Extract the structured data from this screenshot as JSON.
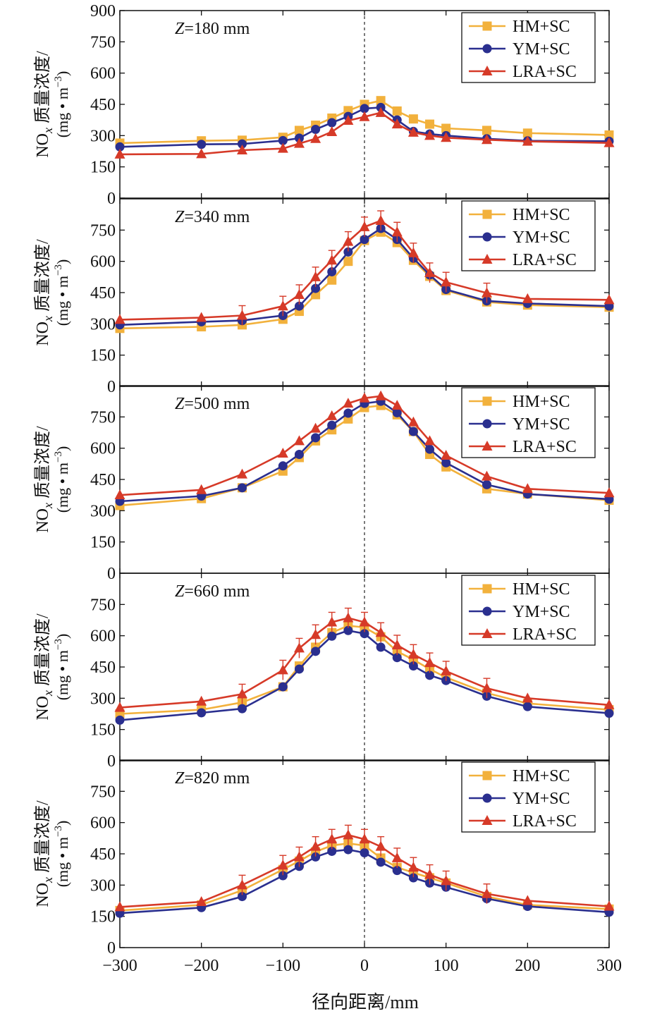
{
  "figure": {
    "xlabel": "径向距离/mm",
    "ylabel_main": "NO",
    "ylabel_sub": "x",
    "ylabel_rest": " 质量浓度/",
    "ylabel_unit_pre": "(mg • m",
    "ylabel_unit_sup": "−3",
    "ylabel_unit_post": ")",
    "z_prefix": "Z",
    "x_ticks": [
      "−300",
      "−200",
      "−100",
      "0",
      "100",
      "200",
      "300"
    ]
  },
  "colors": {
    "HM+SC": "#f2b13c",
    "YM+SC": "#2a2f8f",
    "LRA+SC": "#d63a28",
    "axis": "#111111"
  },
  "chart_data": [
    {
      "type": "line",
      "panel_label": "=180 mm",
      "xlim": [
        -300,
        300
      ],
      "ylim": [
        0,
        900
      ],
      "y_ticks": [
        "0",
        "150",
        "300",
        "450",
        "600",
        "750",
        "900"
      ],
      "legend": [
        "HM+SC",
        "YM+SC",
        "LRA+SC"
      ],
      "legend_position": "top-right",
      "vline_x": 0,
      "x": [
        -300,
        -200,
        -150,
        -100,
        -80,
        -60,
        -40,
        -20,
        0,
        20,
        40,
        60,
        80,
        100,
        150,
        200,
        300
      ],
      "series": [
        {
          "name": "HM+SC",
          "marker": "square",
          "values": [
            264,
            275,
            278,
            292,
            325,
            350,
            384,
            420,
            450,
            468,
            418,
            380,
            355,
            335,
            325,
            312,
            303
          ]
        },
        {
          "name": "YM+SC",
          "marker": "circle",
          "values": [
            246,
            258,
            260,
            276,
            288,
            330,
            362,
            392,
            430,
            435,
            375,
            320,
            308,
            300,
            285,
            275,
            273
          ]
        },
        {
          "name": "LRA+SC",
          "marker": "triangle",
          "values": [
            210,
            212,
            230,
            238,
            262,
            285,
            318,
            372,
            390,
            410,
            355,
            315,
            300,
            290,
            280,
            272,
            265
          ]
        }
      ]
    },
    {
      "type": "line",
      "panel_label": "=340 mm",
      "xlim": [
        -300,
        300
      ],
      "ylim": [
        0,
        900
      ],
      "y_ticks": [
        "0",
        "150",
        "300",
        "450",
        "600",
        "750"
      ],
      "legend": [
        "HM+SC",
        "YM+SC",
        "LRA+SC"
      ],
      "legend_position": "top-right",
      "vline_x": 0,
      "x": [
        -300,
        -200,
        -150,
        -100,
        -80,
        -60,
        -40,
        -20,
        0,
        20,
        40,
        60,
        80,
        100,
        150,
        200,
        300
      ],
      "series": [
        {
          "name": "HM+SC",
          "marker": "square",
          "values": [
            278,
            286,
            295,
            322,
            360,
            440,
            510,
            600,
            700,
            740,
            690,
            605,
            528,
            460,
            405,
            390,
            380
          ]
        },
        {
          "name": "YM+SC",
          "marker": "circle",
          "values": [
            295,
            310,
            316,
            340,
            385,
            470,
            550,
            645,
            705,
            758,
            705,
            615,
            535,
            465,
            410,
            398,
            385
          ]
        },
        {
          "name": "LRA+SC",
          "marker": "triangle",
          "values": [
            320,
            330,
            340,
            385,
            440,
            525,
            605,
            695,
            765,
            795,
            740,
            640,
            545,
            500,
            448,
            420,
            415
          ]
        }
      ],
      "error_bars": "LRA+SC"
    },
    {
      "type": "line",
      "panel_label": "=500 mm",
      "xlim": [
        -300,
        300
      ],
      "ylim": [
        0,
        900
      ],
      "y_ticks": [
        "0",
        "150",
        "300",
        "450",
        "600",
        "750"
      ],
      "legend": [
        "HM+SC",
        "YM+SC",
        "LRA+SC"
      ],
      "legend_position": "top-right",
      "vline_x": 0,
      "x": [
        -300,
        -200,
        -150,
        -100,
        -80,
        -60,
        -40,
        -20,
        0,
        20,
        40,
        60,
        80,
        100,
        150,
        200,
        300
      ],
      "series": [
        {
          "name": "HM+SC",
          "marker": "square",
          "values": [
            325,
            358,
            410,
            490,
            555,
            635,
            688,
            740,
            795,
            805,
            760,
            680,
            570,
            510,
            405,
            380,
            350
          ]
        },
        {
          "name": "YM+SC",
          "marker": "circle",
          "values": [
            345,
            370,
            410,
            515,
            570,
            650,
            710,
            768,
            815,
            825,
            770,
            680,
            595,
            530,
            425,
            380,
            355
          ]
        },
        {
          "name": "LRA+SC",
          "marker": "triangle",
          "values": [
            375,
            400,
            475,
            575,
            635,
            695,
            755,
            815,
            840,
            850,
            805,
            725,
            635,
            565,
            465,
            405,
            385
          ]
        }
      ]
    },
    {
      "type": "line",
      "panel_label": "=660 mm",
      "xlim": [
        -300,
        300
      ],
      "ylim": [
        0,
        900
      ],
      "y_ticks": [
        "0",
        "150",
        "300",
        "450",
        "600",
        "750"
      ],
      "legend": [
        "HM+SC",
        "YM+SC",
        "LRA+SC"
      ],
      "legend_position": "top-right",
      "vline_x": 0,
      "x": [
        -300,
        -200,
        -150,
        -100,
        -80,
        -60,
        -40,
        -20,
        0,
        20,
        40,
        60,
        80,
        100,
        150,
        200,
        300
      ],
      "series": [
        {
          "name": "HM+SC",
          "marker": "square",
          "values": [
            225,
            245,
            280,
            355,
            455,
            545,
            615,
            648,
            640,
            595,
            525,
            485,
            440,
            400,
            325,
            275,
            245
          ]
        },
        {
          "name": "YM+SC",
          "marker": "circle",
          "values": [
            195,
            230,
            250,
            355,
            440,
            525,
            598,
            625,
            610,
            545,
            495,
            455,
            410,
            385,
            310,
            260,
            228
          ]
        },
        {
          "name": "LRA+SC",
          "marker": "triangle",
          "values": [
            255,
            285,
            320,
            435,
            540,
            605,
            665,
            685,
            665,
            615,
            555,
            510,
            470,
            430,
            348,
            300,
            268
          ]
        }
      ],
      "error_bars": "LRA+SC"
    },
    {
      "type": "line",
      "panel_label": "=820 mm",
      "xlim": [
        -300,
        300
      ],
      "ylim": [
        0,
        900
      ],
      "y_ticks": [
        "0",
        "150",
        "300",
        "450",
        "600",
        "750"
      ],
      "legend": [
        "HM+SC",
        "YM+SC",
        "LRA+SC"
      ],
      "legend_position": "top-right",
      "vline_x": 0,
      "x": [
        -300,
        -200,
        -150,
        -100,
        -80,
        -60,
        -40,
        -20,
        0,
        20,
        40,
        60,
        80,
        100,
        150,
        200,
        300
      ],
      "series": [
        {
          "name": "HM+SC",
          "marker": "square",
          "values": [
            178,
            205,
            275,
            375,
            415,
            460,
            490,
            500,
            490,
            430,
            385,
            360,
            335,
            310,
            245,
            205,
            185
          ]
        },
        {
          "name": "YM+SC",
          "marker": "circle",
          "values": [
            165,
            192,
            245,
            345,
            390,
            435,
            462,
            470,
            455,
            410,
            370,
            335,
            310,
            290,
            235,
            198,
            170
          ]
        },
        {
          "name": "LRA+SC",
          "marker": "triangle",
          "values": [
            195,
            220,
            300,
            395,
            435,
            485,
            520,
            540,
            520,
            485,
            430,
            385,
            350,
            320,
            258,
            225,
            198
          ]
        }
      ],
      "error_bars": "LRA+SC"
    }
  ]
}
